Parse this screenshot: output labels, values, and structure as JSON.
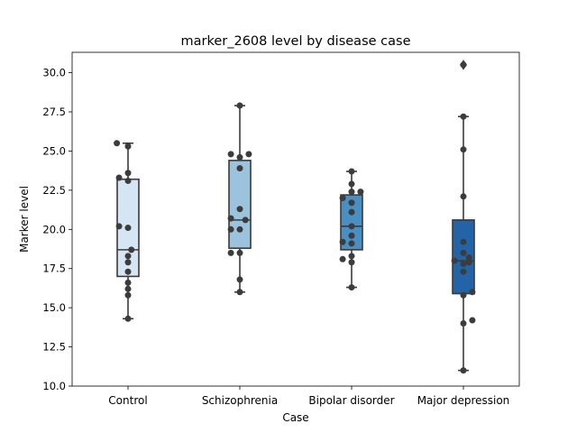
{
  "chart_data": {
    "type": "box",
    "title": "marker_2608 level by disease case",
    "xlabel": "Case",
    "ylabel": "Marker level",
    "ylim": [
      10.0,
      31.3
    ],
    "yticks": [
      "10.0",
      "12.5",
      "15.0",
      "17.5",
      "20.0",
      "22.5",
      "25.0",
      "27.5",
      "30.0"
    ],
    "ytick_values": [
      10.0,
      12.5,
      15.0,
      17.5,
      20.0,
      22.5,
      25.0,
      27.5,
      30.0
    ],
    "grid": false,
    "legend": "none",
    "categories": [
      "Control",
      "Schizophrenia",
      "Bipolar disorder",
      "Major depression"
    ],
    "colors": [
      "#d6e5f4",
      "#9cc3dd",
      "#4a8fc4",
      "#2363a7"
    ],
    "boxes": [
      {
        "name": "Control",
        "whisker_low": 14.3,
        "q1": 17.0,
        "median": 18.7,
        "q3": 23.2,
        "whisker_high": 25.5,
        "outliers": [],
        "points": [
          [
            -0.1,
            25.5
          ],
          [
            0.0,
            25.3
          ],
          [
            -0.08,
            23.3
          ],
          [
            0.0,
            23.6
          ],
          [
            0.0,
            23.1
          ],
          [
            -0.08,
            20.2
          ],
          [
            0.0,
            20.1
          ],
          [
            0.03,
            18.7
          ],
          [
            0.0,
            18.3
          ],
          [
            0.0,
            17.9
          ],
          [
            0.0,
            17.3
          ],
          [
            0.0,
            16.6
          ],
          [
            0.0,
            16.2
          ],
          [
            0.0,
            15.8
          ],
          [
            0.0,
            14.3
          ]
        ]
      },
      {
        "name": "Schizophrenia",
        "whisker_low": 16.0,
        "q1": 18.8,
        "median": 20.6,
        "q3": 24.4,
        "whisker_high": 27.9,
        "outliers": [],
        "points": [
          [
            0.0,
            27.9
          ],
          [
            -0.08,
            24.8
          ],
          [
            0.0,
            24.6
          ],
          [
            0.08,
            24.8
          ],
          [
            0.0,
            23.9
          ],
          [
            0.0,
            21.3
          ],
          [
            -0.08,
            20.7
          ],
          [
            0.05,
            20.6
          ],
          [
            -0.08,
            20.0
          ],
          [
            0.0,
            20.0
          ],
          [
            -0.08,
            18.5
          ],
          [
            0.0,
            18.5
          ],
          [
            0.0,
            16.8
          ],
          [
            0.0,
            16.0
          ]
        ]
      },
      {
        "name": "Bipolar disorder",
        "whisker_low": 16.3,
        "q1": 18.7,
        "median": 20.2,
        "q3": 22.2,
        "whisker_high": 23.7,
        "outliers": [],
        "points": [
          [
            0.0,
            23.7
          ],
          [
            0.0,
            22.9
          ],
          [
            0.0,
            22.4
          ],
          [
            0.08,
            22.4
          ],
          [
            -0.08,
            22.0
          ],
          [
            0.0,
            21.7
          ],
          [
            0.0,
            21.1
          ],
          [
            0.0,
            20.2
          ],
          [
            0.0,
            19.6
          ],
          [
            -0.08,
            19.2
          ],
          [
            0.0,
            19.1
          ],
          [
            0.0,
            18.3
          ],
          [
            -0.08,
            18.1
          ],
          [
            0.0,
            17.9
          ],
          [
            0.0,
            16.3
          ]
        ]
      },
      {
        "name": "Major depression",
        "whisker_low": 11.0,
        "q1": 15.9,
        "median": 18.0,
        "q3": 20.6,
        "whisker_high": 27.2,
        "outliers": [
          30.5
        ],
        "points": [
          [
            0.0,
            30.5
          ],
          [
            0.0,
            27.2
          ],
          [
            0.0,
            25.1
          ],
          [
            0.0,
            22.1
          ],
          [
            0.0,
            19.2
          ],
          [
            0.0,
            18.5
          ],
          [
            0.05,
            18.2
          ],
          [
            -0.08,
            18.0
          ],
          [
            0.0,
            17.8
          ],
          [
            0.05,
            17.9
          ],
          [
            0.0,
            17.3
          ],
          [
            0.08,
            16.0
          ],
          [
            0.0,
            15.8
          ],
          [
            0.08,
            14.2
          ],
          [
            0.0,
            14.0
          ],
          [
            0.0,
            11.0
          ]
        ]
      }
    ]
  }
}
